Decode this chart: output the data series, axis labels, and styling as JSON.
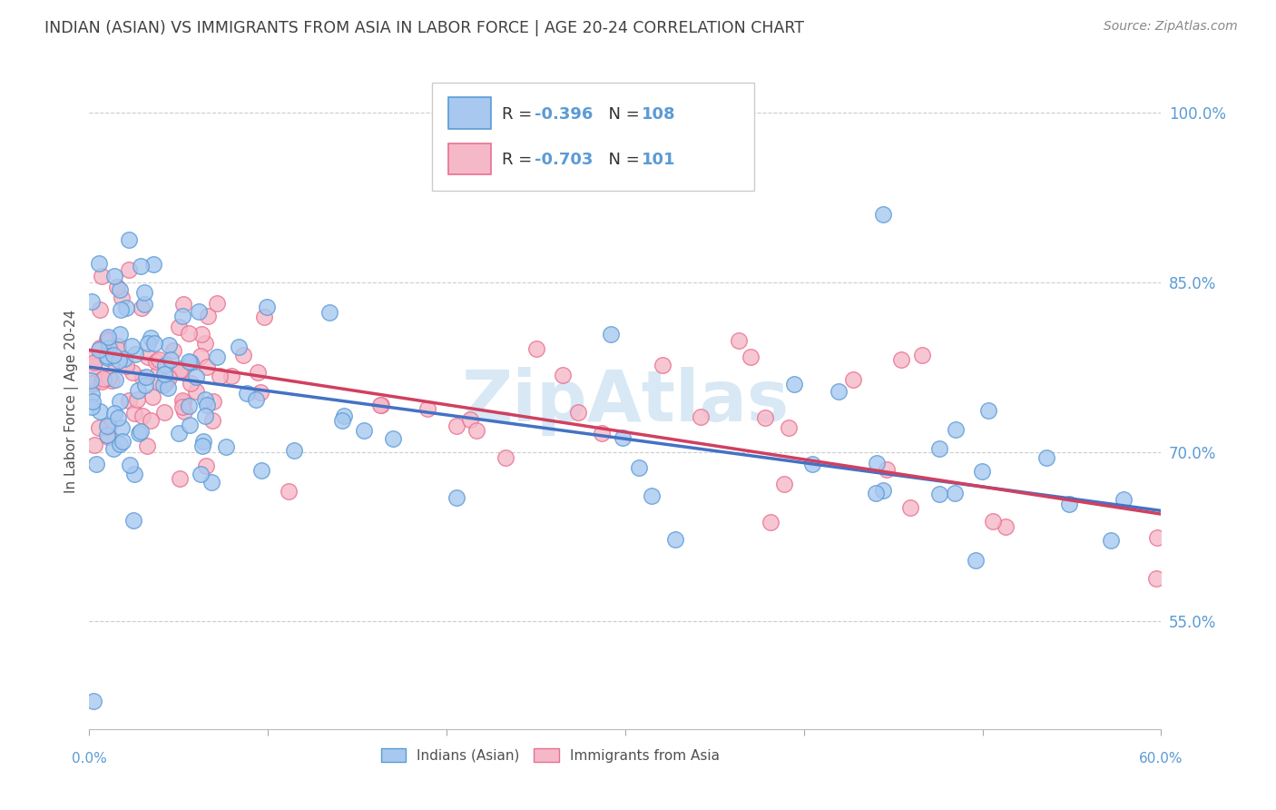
{
  "title": "INDIAN (ASIAN) VS IMMIGRANTS FROM ASIA IN LABOR FORCE | AGE 20-24 CORRELATION CHART",
  "source": "Source: ZipAtlas.com",
  "ylabel": "In Labor Force | Age 20-24",
  "ytick_labels": [
    "100.0%",
    "85.0%",
    "70.0%",
    "55.0%"
  ],
  "ytick_values": [
    1.0,
    0.85,
    0.7,
    0.55
  ],
  "xmin": 0.0,
  "xmax": 0.6,
  "ymin": 0.455,
  "ymax": 1.035,
  "legend_r1": "R = -0.396",
  "legend_n1": "N = 108",
  "legend_r2": "R = -0.703",
  "legend_n2": "N = 101",
  "color_blue_fill": "#A8C8F0",
  "color_pink_fill": "#F5B8C8",
  "color_blue_edge": "#5B9BD5",
  "color_pink_edge": "#E87090",
  "color_blue_line": "#4472C4",
  "color_pink_line": "#D04060",
  "color_axis_text": "#5B9BD5",
  "color_title": "#404040",
  "color_source": "#888888",
  "color_grid": "#CCCCCC",
  "color_watermark": "#D8E8F5",
  "blue_line_x0": 0.0,
  "blue_line_y0": 0.775,
  "blue_line_x1": 0.6,
  "blue_line_y1": 0.648,
  "pink_line_x0": 0.0,
  "pink_line_y0": 0.79,
  "pink_line_x1": 0.6,
  "pink_line_y1": 0.645
}
